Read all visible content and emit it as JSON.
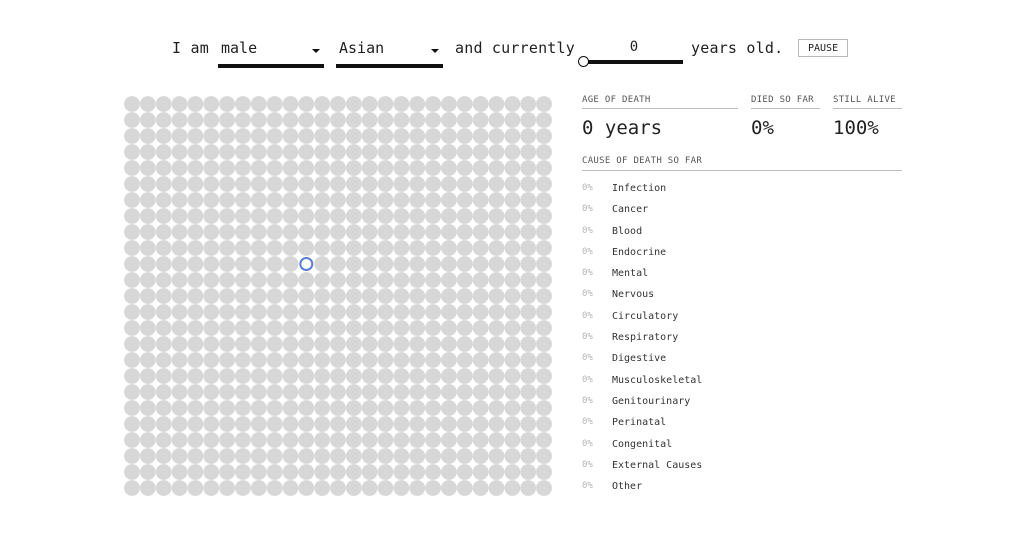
{
  "sentence": {
    "prefix": "I am",
    "sex_value": "male",
    "race_value": "Asian",
    "middle": "and currently",
    "age_value": "0",
    "suffix": "years old.",
    "pause_label": "PAUSE"
  },
  "grid": {
    "rows": 25,
    "cols": 27,
    "dot_color": "#d7d7d7",
    "highlight_color": "#5b7fd6",
    "highlight_row": 10,
    "highlight_col": 11
  },
  "stats": {
    "age_header": "AGE OF DEATH",
    "age_value": "0 years",
    "died_header": "DIED SO FAR",
    "died_value": "0%",
    "alive_header": "STILL ALIVE",
    "alive_value": "100%"
  },
  "causes": {
    "header": "CAUSE OF DEATH SO FAR",
    "items": [
      {
        "pct": "0%",
        "name": "Infection"
      },
      {
        "pct": "0%",
        "name": "Cancer"
      },
      {
        "pct": "0%",
        "name": "Blood"
      },
      {
        "pct": "0%",
        "name": "Endocrine"
      },
      {
        "pct": "0%",
        "name": "Mental"
      },
      {
        "pct": "0%",
        "name": "Nervous"
      },
      {
        "pct": "0%",
        "name": "Circulatory"
      },
      {
        "pct": "0%",
        "name": "Respiratory"
      },
      {
        "pct": "0%",
        "name": "Digestive"
      },
      {
        "pct": "0%",
        "name": "Musculoskeletal"
      },
      {
        "pct": "0%",
        "name": "Genitourinary"
      },
      {
        "pct": "0%",
        "name": "Perinatal"
      },
      {
        "pct": "0%",
        "name": "Congenital"
      },
      {
        "pct": "0%",
        "name": "External Causes"
      },
      {
        "pct": "0%",
        "name": "Other"
      }
    ]
  }
}
